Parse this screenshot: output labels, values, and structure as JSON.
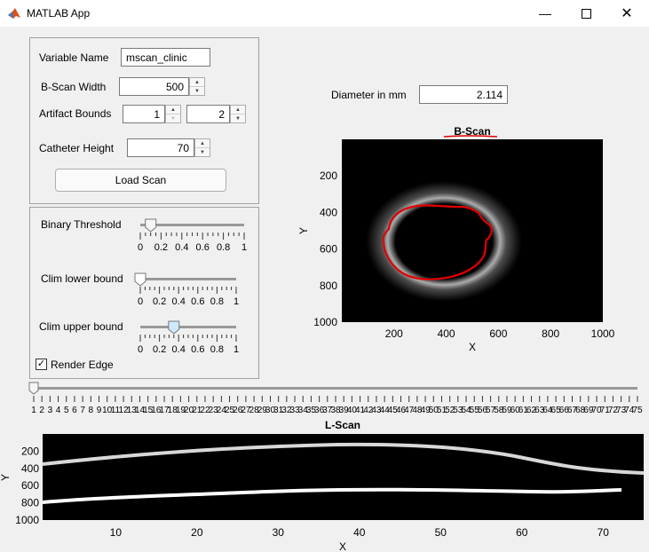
{
  "window": {
    "title": "MATLAB App",
    "minimize_icon": "minimize-icon",
    "maximize_icon": "maximize-icon",
    "close_icon": "close-icon"
  },
  "controls": {
    "variable_name_label": "Variable Name",
    "variable_name_value": "mscan_clinic",
    "bscan_width_label": "B-Scan Width",
    "bscan_width_value": "500",
    "artifact_bounds_label": "Artifact Bounds",
    "artifact_lower_value": "1",
    "artifact_upper_value": "2",
    "catheter_height_label": "Catheter Height",
    "catheter_height_value": "70",
    "load_scan_label": "Load Scan"
  },
  "sliders": {
    "binary_threshold_label": "Binary Threshold",
    "binary_threshold_value": 0.1,
    "clim_lower_label": "Clim lower bound",
    "clim_lower_value": 0.0,
    "clim_upper_label": "Clim upper bound",
    "clim_upper_value": 0.35,
    "tick_labels": [
      "0",
      "0.2",
      "0.4",
      "0.6",
      "0.8",
      "1"
    ]
  },
  "render_edge": {
    "label": "Render Edge",
    "checked": true
  },
  "diameter": {
    "label": "Diameter in mm",
    "value": "2.114"
  },
  "bscan": {
    "title": "B-Scan",
    "xlabel": "X",
    "ylabel": "Y",
    "xticks": [
      "200",
      "400",
      "600",
      "800",
      "1000"
    ],
    "yticks": [
      "200",
      "400",
      "600",
      "800",
      "1000"
    ]
  },
  "frame_slider": {
    "value": 1,
    "min": 1,
    "max": 75
  },
  "lscan": {
    "title": "L-Scan",
    "xlabel": "X",
    "ylabel": "Y",
    "xticks": [
      "10",
      "20",
      "30",
      "40",
      "50",
      "60",
      "70"
    ],
    "yticks": [
      "200",
      "400",
      "600",
      "800",
      "1000"
    ]
  },
  "colors": {
    "edge": "#e00000",
    "slider_thumb": "#cfe8fc"
  }
}
